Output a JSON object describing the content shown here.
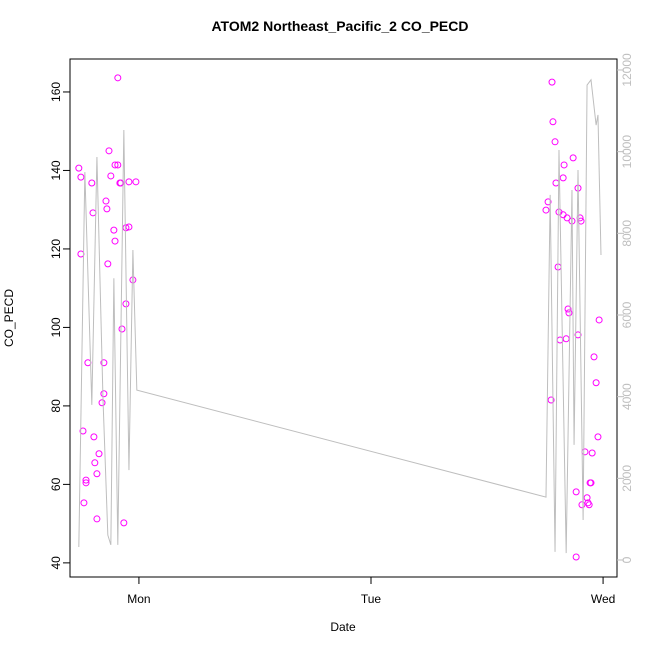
{
  "chart_data": {
    "type": "scatter-line",
    "title": "ATOM2 Northeast_Pacific_2 CO_PECD",
    "x_label": "Date",
    "y_label": "CO_PECD",
    "xlim": [
      -0.297,
      2.06
    ],
    "xticks": [
      {
        "value": 0,
        "label": "Mon"
      },
      {
        "value": 1,
        "label": "Tue"
      },
      {
        "value": 2,
        "label": "Wed"
      }
    ],
    "ylim": [
      36.4,
      168.4
    ],
    "yticks": [
      40,
      60,
      80,
      100,
      120,
      140,
      160
    ],
    "y2lim": [
      -416,
      12269
    ],
    "y2ticks": [
      0,
      2000,
      4000,
      6000,
      8000,
      10000,
      12000
    ],
    "y2_color": "#bebebe",
    "series": [
      {
        "type": "scatter",
        "color": "#ff00ff",
        "x": [
          -0.259,
          -0.25,
          -0.25,
          -0.241,
          -0.237,
          -0.228,
          -0.228,
          -0.22,
          -0.203,
          -0.198,
          -0.194,
          -0.19,
          -0.181,
          -0.181,
          -0.172,
          -0.159,
          -0.151,
          -0.151,
          -0.142,
          -0.138,
          -0.134,
          -0.129,
          -0.121,
          -0.108,
          -0.103,
          -0.103,
          -0.091,
          -0.091,
          -0.082,
          -0.078,
          -0.073,
          -0.065,
          -0.056,
          -0.056,
          -0.043,
          -0.043,
          -0.026,
          -0.013,
          1.754,
          1.763,
          1.776,
          1.78,
          1.784,
          1.793,
          1.797,
          1.806,
          1.81,
          1.815,
          1.828,
          1.828,
          1.832,
          1.841,
          1.845,
          1.849,
          1.853,
          1.866,
          1.871,
          1.884,
          1.884,
          1.892,
          1.892,
          1.901,
          1.905,
          1.909,
          1.922,
          1.931,
          1.935,
          1.94,
          1.944,
          1.948,
          1.953,
          1.961,
          1.97,
          1.978,
          1.983
        ],
        "values": [
          140.6,
          138.3,
          118.7,
          73.6,
          55.3,
          61.1,
          60.4,
          91.0,
          136.8,
          129.2,
          72.1,
          65.5,
          51.2,
          62.7,
          67.8,
          80.8,
          83.1,
          91.0,
          132.2,
          130.2,
          116.2,
          145.0,
          138.6,
          124.8,
          122.0,
          141.4,
          141.4,
          163.6,
          136.8,
          136.8,
          99.6,
          50.2,
          106.0,
          125.4,
          125.6,
          137.1,
          112.1,
          137.1,
          129.9,
          132.0,
          81.5,
          162.5,
          152.4,
          147.3,
          136.8,
          115.4,
          129.4,
          96.8,
          128.7,
          138.1,
          141.4,
          97.1,
          127.9,
          104.7,
          103.7,
          127.1,
          143.2,
          41.5,
          58.1,
          135.5,
          98.1,
          127.9,
          127.1,
          54.8,
          68.3,
          56.6,
          55.3,
          54.8,
          60.4,
          60.4,
          68.0,
          92.5,
          85.9,
          72.1,
          101.9
        ]
      },
      {
        "type": "line",
        "axis": "y2",
        "color": "#bebebe",
        "x": [
          -0.259,
          -0.233,
          -0.203,
          -0.181,
          -0.155,
          -0.134,
          -0.121,
          -0.108,
          -0.091,
          -0.065,
          -0.043,
          -0.026,
          -0.009,
          1.754,
          1.772,
          1.793,
          1.81,
          1.841,
          1.866,
          1.875,
          1.892,
          1.914,
          1.931,
          1.948,
          1.97,
          1.978,
          1.991
        ],
        "values": [
          318,
          9500,
          3800,
          9870,
          3970,
          610,
          370,
          6900,
          370,
          10530,
          2200,
          7590,
          4160,
          1540,
          8940,
          200,
          10040,
          170,
          9060,
          2820,
          9550,
          980,
          11630,
          11760,
          10650,
          10900,
          7470
        ]
      }
    ]
  }
}
